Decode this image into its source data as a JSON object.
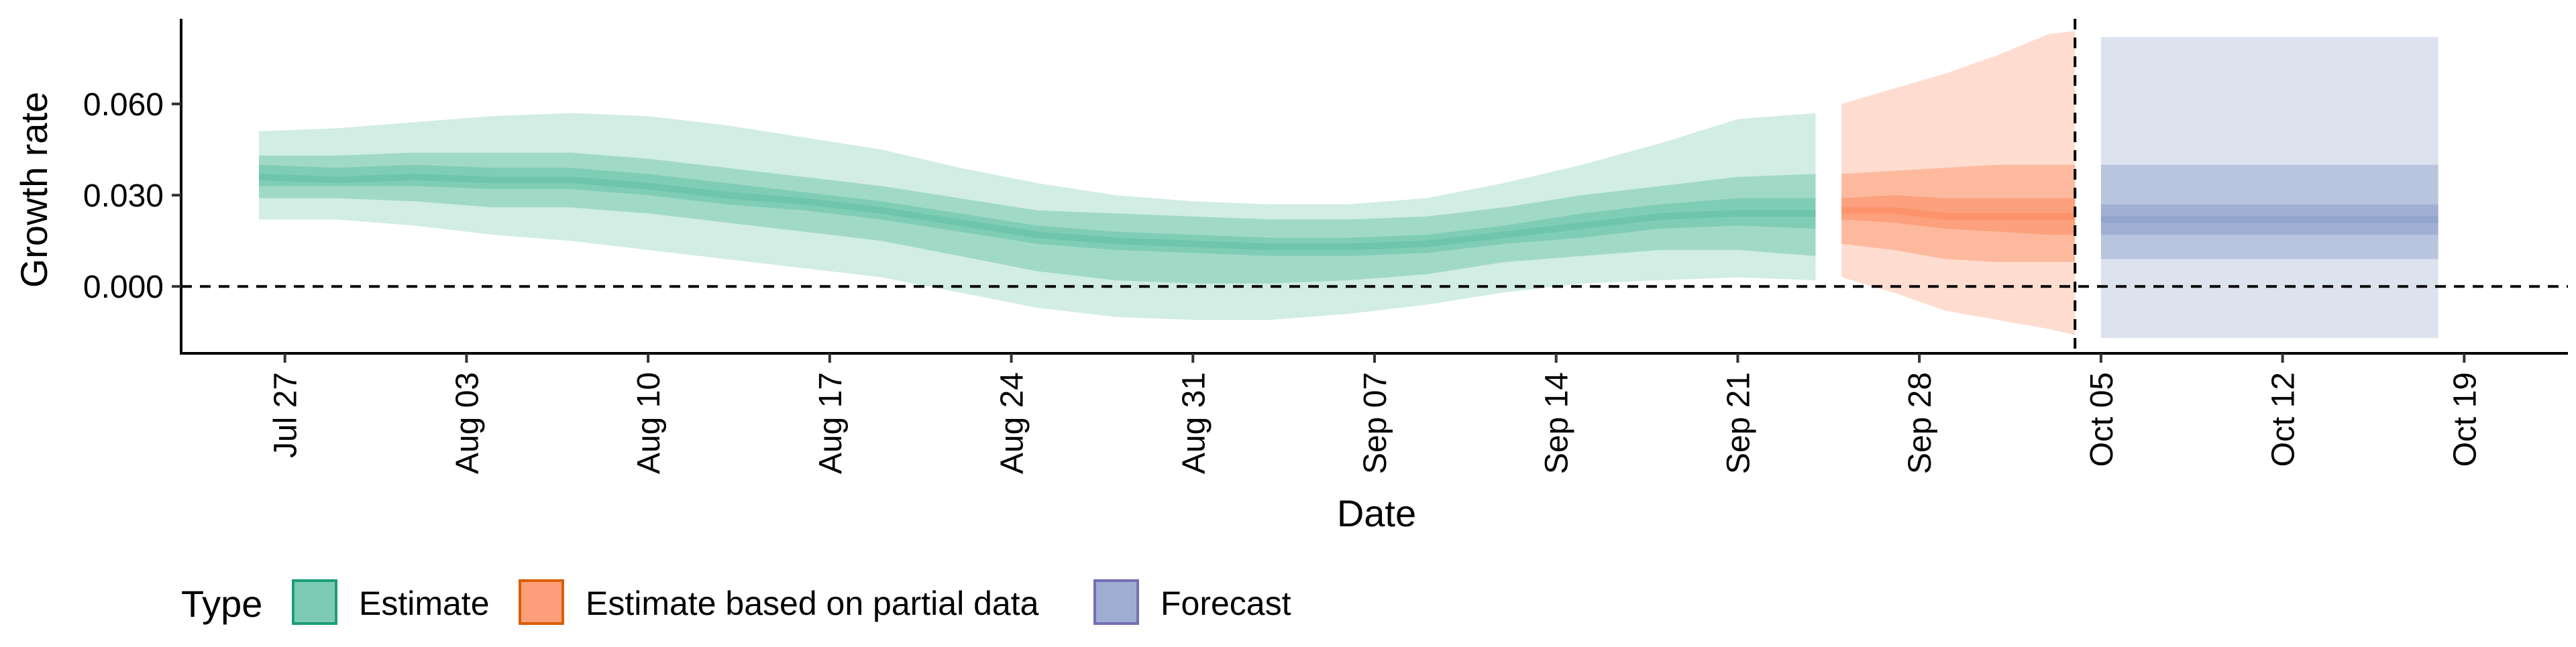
{
  "chart_data": {
    "type": "area",
    "xlabel": "Date",
    "ylabel": "Growth rate",
    "xlim": [
      "2020-07-23",
      "2020-10-23"
    ],
    "ylim": [
      -0.022,
      0.088
    ],
    "y_ticks": [
      0.0,
      0.03,
      0.06
    ],
    "y_tick_labels": [
      "0.000",
      "0.030",
      "0.060"
    ],
    "x_ticks": [
      "2020-07-27",
      "2020-08-03",
      "2020-08-10",
      "2020-08-17",
      "2020-08-24",
      "2020-08-31",
      "2020-09-07",
      "2020-09-14",
      "2020-09-21",
      "2020-09-28",
      "2020-10-05",
      "2020-10-12",
      "2020-10-19"
    ],
    "x_tick_labels": [
      "Jul 27",
      "Aug 03",
      "Aug 10",
      "Aug 17",
      "Aug 24",
      "Aug 31",
      "Sep 07",
      "Sep 14",
      "Sep 21",
      "Sep 28",
      "Oct 05",
      "Oct 12",
      "Oct 19"
    ],
    "reference_lines": {
      "horizontal_y": 0.0,
      "vertical_x": "2020-10-04",
      "style": "dashed"
    },
    "grid": false,
    "legend": {
      "title": "Type",
      "position": "bottom-left"
    },
    "series": [
      {
        "name": "Estimate",
        "color": "#1b9e77",
        "fill": "#66c2a5",
        "x": [
          "2020-07-26",
          "2020-07-29",
          "2020-08-01",
          "2020-08-04",
          "2020-08-07",
          "2020-08-10",
          "2020-08-13",
          "2020-08-16",
          "2020-08-19",
          "2020-08-22",
          "2020-08-25",
          "2020-08-28",
          "2020-08-31",
          "2020-09-03",
          "2020-09-06",
          "2020-09-09",
          "2020-09-12",
          "2020-09-15",
          "2020-09-18",
          "2020-09-21",
          "2020-09-24"
        ],
        "median": [
          0.036,
          0.035,
          0.036,
          0.035,
          0.035,
          0.033,
          0.03,
          0.028,
          0.025,
          0.021,
          0.017,
          0.015,
          0.014,
          0.013,
          0.013,
          0.014,
          0.017,
          0.02,
          0.023,
          0.024,
          0.024
        ],
        "inner_low": [
          0.033,
          0.033,
          0.033,
          0.032,
          0.032,
          0.03,
          0.027,
          0.025,
          0.022,
          0.018,
          0.014,
          0.012,
          0.011,
          0.01,
          0.01,
          0.011,
          0.014,
          0.016,
          0.019,
          0.02,
          0.019
        ],
        "inner_high": [
          0.04,
          0.039,
          0.04,
          0.039,
          0.039,
          0.037,
          0.034,
          0.031,
          0.028,
          0.024,
          0.02,
          0.018,
          0.017,
          0.016,
          0.016,
          0.017,
          0.02,
          0.024,
          0.027,
          0.029,
          0.029
        ],
        "mid_low": [
          0.029,
          0.029,
          0.028,
          0.026,
          0.026,
          0.024,
          0.021,
          0.018,
          0.015,
          0.01,
          0.005,
          0.002,
          0.001,
          0.001,
          0.002,
          0.004,
          0.008,
          0.01,
          0.012,
          0.012,
          0.01
        ],
        "mid_high": [
          0.043,
          0.043,
          0.044,
          0.044,
          0.044,
          0.042,
          0.039,
          0.036,
          0.033,
          0.029,
          0.025,
          0.024,
          0.023,
          0.022,
          0.022,
          0.023,
          0.026,
          0.03,
          0.033,
          0.036,
          0.037
        ],
        "outer_low": [
          0.022,
          0.022,
          0.02,
          0.017,
          0.015,
          0.012,
          0.009,
          0.006,
          0.003,
          -0.002,
          -0.007,
          -0.01,
          -0.011,
          -0.011,
          -0.009,
          -0.006,
          -0.002,
          0.001,
          0.002,
          0.003,
          0.002
        ],
        "outer_high": [
          0.051,
          0.052,
          0.054,
          0.056,
          0.057,
          0.056,
          0.053,
          0.049,
          0.045,
          0.039,
          0.034,
          0.03,
          0.028,
          0.027,
          0.027,
          0.029,
          0.034,
          0.04,
          0.047,
          0.055,
          0.057
        ]
      },
      {
        "name": "Estimate based on partial data",
        "color": "#d95f02",
        "fill": "#fc8d62",
        "x": [
          "2020-09-25",
          "2020-09-27",
          "2020-09-29",
          "2020-10-01",
          "2020-10-03",
          "2020-10-04"
        ],
        "median": [
          0.025,
          0.025,
          0.023,
          0.023,
          0.023,
          0.023
        ],
        "inner_low": [
          0.022,
          0.021,
          0.019,
          0.018,
          0.017,
          0.017
        ],
        "inner_high": [
          0.029,
          0.03,
          0.029,
          0.029,
          0.029,
          0.029
        ],
        "mid_low": [
          0.014,
          0.012,
          0.009,
          0.008,
          0.008,
          0.008
        ],
        "mid_high": [
          0.037,
          0.038,
          0.039,
          0.04,
          0.04,
          0.04
        ],
        "outer_low": [
          0.003,
          -0.002,
          -0.008,
          -0.011,
          -0.014,
          -0.016
        ],
        "outer_high": [
          0.06,
          0.065,
          0.07,
          0.076,
          0.083,
          0.084
        ]
      },
      {
        "name": "Forecast",
        "color": "#7570b3",
        "fill": "#8da0cb",
        "x": [
          "2020-10-05",
          "2020-10-18"
        ],
        "median": [
          0.022,
          0.022
        ],
        "inner_low": [
          0.017,
          0.017
        ],
        "inner_high": [
          0.027,
          0.027
        ],
        "mid_low": [
          0.009,
          0.009
        ],
        "mid_high": [
          0.04,
          0.04
        ],
        "outer_low": [
          -0.017,
          -0.017
        ],
        "outer_high": [
          0.082,
          0.082
        ]
      }
    ]
  }
}
